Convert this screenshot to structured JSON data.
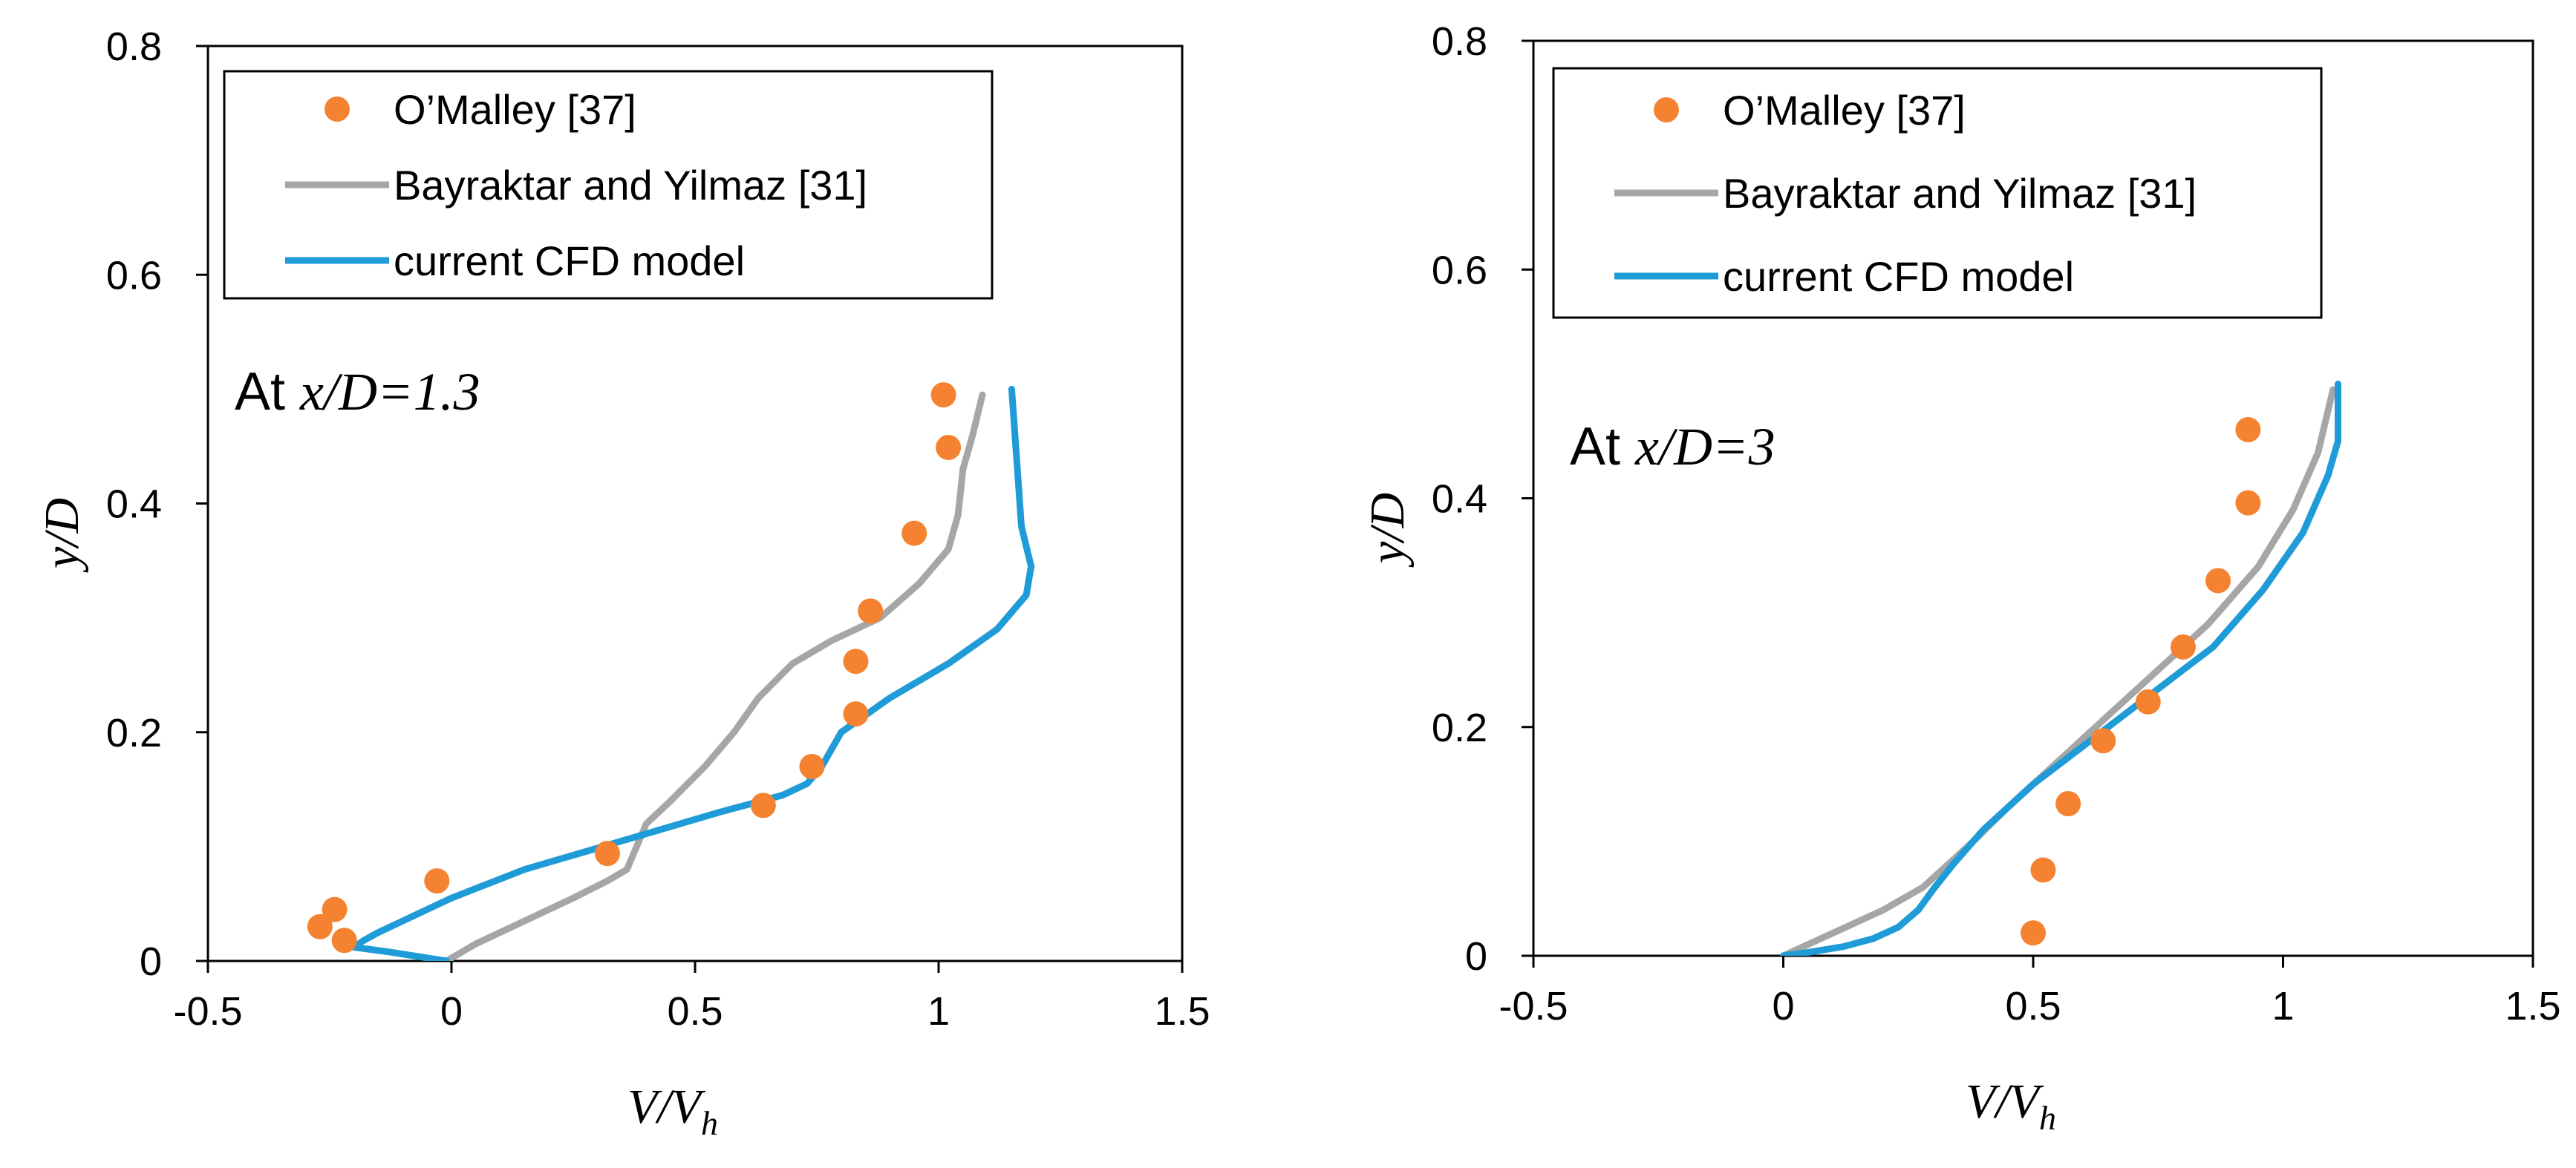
{
  "colors": {
    "experiment": "#F58230",
    "bayraktar": "#A6A6A6",
    "cfd": "#1F9BD7",
    "axis": "#000000"
  },
  "chart_data": [
    {
      "type": "scatter+line",
      "xlabel": "V/V",
      "xlabel_sub": "h",
      "ylabel": "y/D",
      "xlim": [
        -0.5,
        1.5
      ],
      "ylim": [
        0,
        0.8
      ],
      "xticks": [
        -0.5,
        0,
        0.5,
        1,
        1.5
      ],
      "xtick_labels": [
        "-0.5",
        "0",
        "0.5",
        "1",
        "1.5"
      ],
      "yticks": [
        0,
        0.2,
        0.4,
        0.6,
        0.8
      ],
      "ytick_labels": [
        "0",
        "0.2",
        "0.4",
        "0.6",
        "0.8"
      ],
      "annotation_prefix": "At ",
      "annotation_italic": "x/D=1.3",
      "legend": {
        "position": "top",
        "entries": [
          {
            "label": "O’Malley [37]",
            "kind": "marker",
            "series": "experiment"
          },
          {
            "label": "Bayraktar and Yilmaz [31]",
            "kind": "line",
            "series": "bayraktar"
          },
          {
            "label": "current CFD model",
            "kind": "line",
            "series": "cfd"
          }
        ]
      },
      "series": [
        {
          "name": "O’Malley [37]",
          "key": "experiment",
          "kind": "scatter",
          "x": [
            1.01,
            1.02,
            0.95,
            0.86,
            0.83,
            0.83,
            0.74,
            0.64,
            0.32,
            -0.03,
            -0.24,
            -0.27,
            -0.22
          ],
          "y": [
            0.495,
            0.449,
            0.374,
            0.306,
            0.262,
            0.216,
            0.17,
            0.136,
            0.094,
            0.07,
            0.045,
            0.03,
            0.018
          ]
        },
        {
          "name": "Bayraktar and Yilmaz [31]",
          "key": "bayraktar",
          "kind": "line",
          "x": [
            -0.01,
            0.05,
            0.15,
            0.25,
            0.32,
            0.36,
            0.38,
            0.4,
            0.45,
            0.52,
            0.58,
            0.63,
            0.7,
            0.78,
            0.88,
            0.96,
            1.02,
            1.04,
            1.05,
            1.07,
            1.09
          ],
          "y": [
            0.0,
            0.015,
            0.035,
            0.055,
            0.07,
            0.08,
            0.1,
            0.12,
            0.14,
            0.17,
            0.2,
            0.23,
            0.26,
            0.28,
            0.3,
            0.33,
            0.36,
            0.39,
            0.43,
            0.46,
            0.495
          ]
        },
        {
          "name": "current CFD model",
          "key": "cfd",
          "kind": "line",
          "x": [
            -0.01,
            -0.13,
            -0.2,
            -0.18,
            -0.15,
            -0.1,
            0.0,
            0.15,
            0.35,
            0.55,
            0.68,
            0.73,
            0.76,
            0.8,
            0.9,
            1.02,
            1.12,
            1.18,
            1.19,
            1.17,
            1.16,
            1.15
          ],
          "y": [
            0.0,
            0.008,
            0.012,
            0.018,
            0.025,
            0.035,
            0.055,
            0.08,
            0.105,
            0.13,
            0.145,
            0.155,
            0.17,
            0.2,
            0.23,
            0.26,
            0.29,
            0.32,
            0.345,
            0.38,
            0.44,
            0.5
          ]
        }
      ]
    },
    {
      "type": "scatter+line",
      "xlabel": "V/V",
      "xlabel_sub": "h",
      "ylabel": "y/D",
      "xlim": [
        -0.5,
        1.5
      ],
      "ylim": [
        0,
        0.8
      ],
      "xticks": [
        -0.5,
        0,
        0.5,
        1,
        1.5
      ],
      "xtick_labels": [
        "-0.5",
        "0",
        "0.5",
        "1",
        "1.5"
      ],
      "yticks": [
        0,
        0.2,
        0.4,
        0.6,
        0.8
      ],
      "ytick_labels": [
        "0",
        "0.2",
        "0.4",
        "0.6",
        "0.8"
      ],
      "annotation_prefix": "At ",
      "annotation_italic": "x/D=3",
      "legend": {
        "position": "top",
        "entries": [
          {
            "label": "O’Malley [37]",
            "kind": "marker",
            "series": "experiment"
          },
          {
            "label": "Bayraktar and Yilmaz [31]",
            "kind": "line",
            "series": "bayraktar"
          },
          {
            "label": "current CFD model",
            "kind": "line",
            "series": "cfd"
          }
        ]
      },
      "series": [
        {
          "name": "O’Malley [37]",
          "key": "experiment",
          "kind": "scatter",
          "x": [
            0.93,
            0.93,
            0.87,
            0.8,
            0.73,
            0.64,
            0.57,
            0.52,
            0.5
          ],
          "y": [
            0.46,
            0.396,
            0.328,
            0.27,
            0.222,
            0.188,
            0.133,
            0.075,
            0.02
          ]
        },
        {
          "name": "Bayraktar and Yilmaz [31]",
          "key": "bayraktar",
          "kind": "line",
          "x": [
            0.0,
            0.1,
            0.2,
            0.28,
            0.33,
            0.38,
            0.45,
            0.55,
            0.65,
            0.75,
            0.85,
            0.95,
            1.02,
            1.07,
            1.1
          ],
          "y": [
            0.0,
            0.02,
            0.04,
            0.06,
            0.08,
            0.1,
            0.13,
            0.17,
            0.21,
            0.25,
            0.29,
            0.34,
            0.39,
            0.44,
            0.495
          ]
        },
        {
          "name": "current CFD model",
          "key": "cfd",
          "kind": "line",
          "x": [
            0.0,
            0.05,
            0.12,
            0.18,
            0.23,
            0.27,
            0.3,
            0.34,
            0.4,
            0.5,
            0.62,
            0.74,
            0.86,
            0.96,
            1.04,
            1.09,
            1.11,
            1.11,
            1.11
          ],
          "y": [
            0.0,
            0.003,
            0.008,
            0.015,
            0.025,
            0.04,
            0.058,
            0.08,
            0.11,
            0.15,
            0.19,
            0.23,
            0.27,
            0.32,
            0.37,
            0.42,
            0.45,
            0.48,
            0.5
          ]
        }
      ]
    }
  ]
}
